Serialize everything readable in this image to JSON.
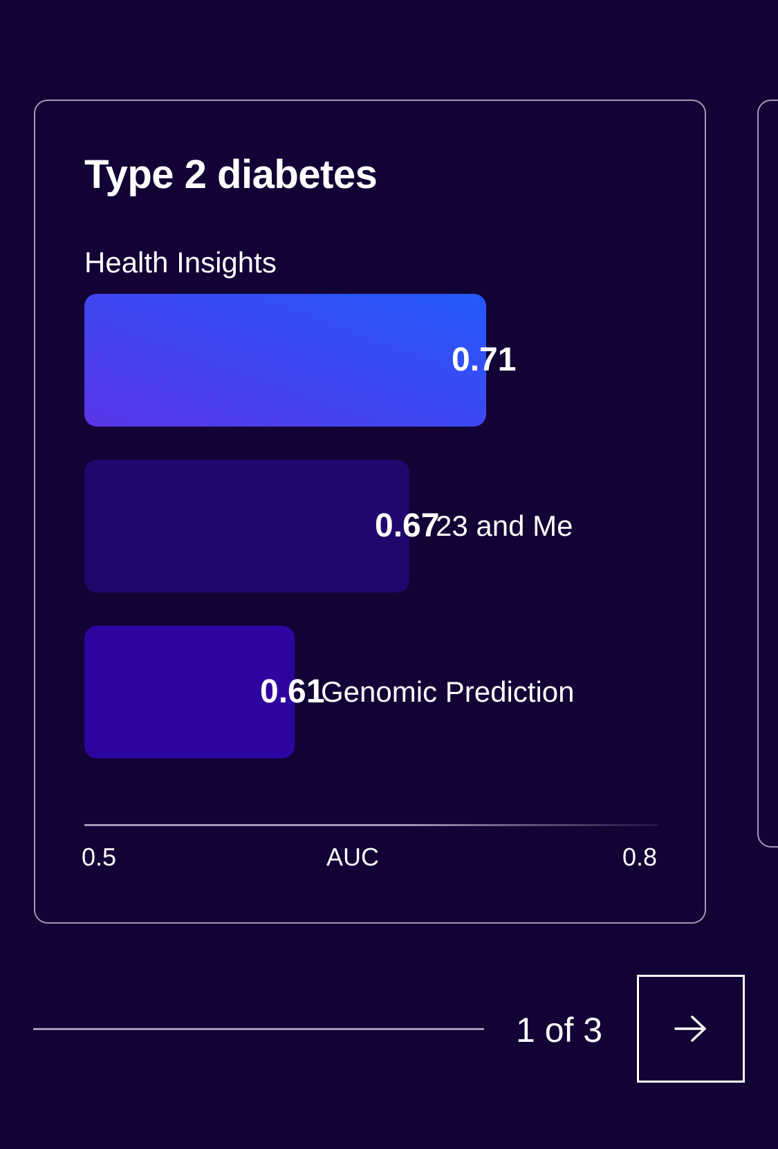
{
  "card": {
    "title": "Type 2 diabetes",
    "axis": {
      "min_label": "0.5",
      "max_label": "0.8",
      "label": "AUC"
    }
  },
  "chart_data": {
    "type": "bar",
    "orientation": "horizontal",
    "title": "Type 2 diabetes",
    "xlabel": "AUC",
    "xlim": [
      0.5,
      0.8
    ],
    "categories": [
      "Health Insights",
      "23 and Me",
      "Genomic Prediction"
    ],
    "values": [
      0.71,
      0.67,
      0.61
    ],
    "value_labels": [
      "0.71",
      "0.67",
      "0.61"
    ],
    "tick_labels": [
      "0.5",
      "0.8"
    ],
    "colors": [
      "#3b48f0",
      "#21066b",
      "#2e04a0"
    ]
  },
  "pager": {
    "text": "1 of 3",
    "current": 1,
    "total": 3,
    "next_icon": "arrow-right-icon"
  },
  "colors": {
    "background": "#120235",
    "border": "#a59ab8",
    "bar_primary_start": "#5836e8",
    "bar_primary_end": "#2359fa"
  }
}
